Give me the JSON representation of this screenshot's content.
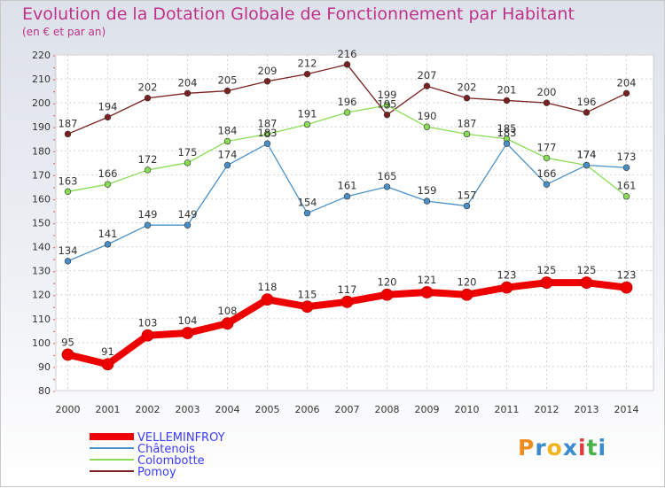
{
  "title": "Evolution de la Dotation Globale de Fonctionnement par Habitant",
  "subtitle": "(en € et par an)",
  "logo_text": "Proxiti",
  "chart_data": {
    "type": "line",
    "x": [
      "2000",
      "2001",
      "2002",
      "2003",
      "2004",
      "2005",
      "2006",
      "2007",
      "2008",
      "2009",
      "2010",
      "2011",
      "2012",
      "2013",
      "2014"
    ],
    "ylim": [
      80,
      220
    ],
    "yticks": [
      80,
      90,
      100,
      110,
      120,
      130,
      140,
      150,
      160,
      170,
      180,
      190,
      200,
      210,
      220
    ],
    "grid": true,
    "legend_position": "bottom-left",
    "series": [
      {
        "name": "VELLEMINFROY",
        "color": "#ee0000",
        "label_color": "#3a3aff",
        "values": [
          95,
          91,
          103,
          104,
          108,
          118,
          115,
          117,
          120,
          121,
          120,
          123,
          125,
          125,
          123
        ]
      },
      {
        "name": "Châtenois",
        "color": "#4a90c8",
        "label_color": "#3a3aff",
        "values": [
          134,
          141,
          149,
          149,
          174,
          183,
          154,
          161,
          165,
          159,
          157,
          183,
          166,
          174,
          173
        ]
      },
      {
        "name": "Colombotte",
        "color": "#88dd55",
        "label_color": "#3a3aff",
        "values": [
          163,
          166,
          172,
          175,
          184,
          187,
          191,
          196,
          199,
          190,
          187,
          185,
          177,
          174,
          161
        ]
      },
      {
        "name": "Pomoy",
        "color": "#7a2020",
        "label_color": "#3a3aff",
        "values": [
          187,
          194,
          202,
          204,
          205,
          209,
          212,
          216,
          195,
          207,
          202,
          201,
          200,
          196,
          204
        ]
      }
    ]
  }
}
